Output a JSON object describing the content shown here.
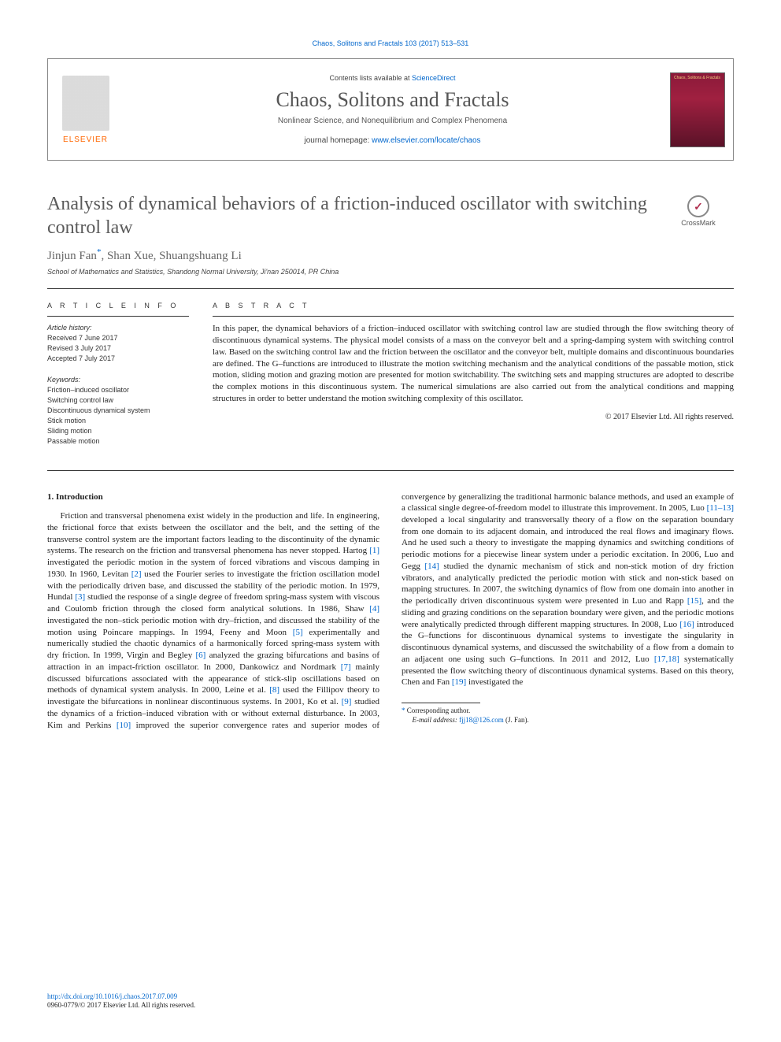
{
  "top_link": "Chaos, Solitons and Fractals 103 (2017) 513–531",
  "header": {
    "elsevier": "ELSEVIER",
    "contents_prefix": "Contents lists available at ",
    "contents_link": "ScienceDirect",
    "journal_name": "Chaos, Solitons and Fractals",
    "journal_subtitle": "Nonlinear Science, and Nonequilibrium and Complex Phenomena",
    "homepage_prefix": "journal homepage: ",
    "homepage_link": "www.elsevier.com/locate/chaos",
    "cover_text": "Chaos, Solitons & Fractals"
  },
  "article": {
    "title": "Analysis of dynamical behaviors of a friction-induced oscillator with switching control law",
    "crossmark": "CrossMark",
    "authors_html": "Jinjun Fan*, Shan Xue, Shuangshuang Li",
    "author1": "Jinjun Fan",
    "author2": ", Shan Xue, Shuangshuang Li",
    "affiliation": "School of Mathematics and Statistics, Shandong Normal University, Ji'nan 250014, PR China"
  },
  "meta": {
    "info_heading": "A R T I C L E   I N F O",
    "history_heading": "Article history:",
    "received": "Received 7 June 2017",
    "revised": "Revised 3 July 2017",
    "accepted": "Accepted 7 July 2017",
    "keywords_heading": "Keywords:",
    "keywords": [
      "Friction–induced oscillator",
      "Switching control law",
      "Discontinuous dynamical system",
      "Stick motion",
      "Sliding motion",
      "Passable motion"
    ]
  },
  "abstract": {
    "heading": "A B S T R A C T",
    "text": "In this paper, the dynamical behaviors of a friction–induced oscillator with switching control law are studied through the flow switching theory of discontinuous dynamical systems. The physical model consists of a mass on the conveyor belt and a spring-damping system with switching control law. Based on the switching control law and the friction between the oscillator and the conveyor belt, multiple domains and discontinuous boundaries are defined. The G–functions are introduced to illustrate the motion switching mechanism and the analytical conditions of the passable motion, stick motion, sliding motion and grazing motion are presented for motion switchability. The switching sets and mapping structures are adopted to describe the complex motions in this discontinuous system. The numerical simulations are also carried out from the analytical conditions and mapping structures in order to better understand the motion switching complexity of this oscillator.",
    "copyright": "© 2017 Elsevier Ltd. All rights reserved."
  },
  "body": {
    "section_heading": "1. Introduction",
    "para": "Friction and transversal phenomena exist widely in the production and life. In engineering, the frictional force that exists between the oscillator and the belt, and the setting of the transverse control system are the important factors leading to the discontinuity of the dynamic systems. The research on the friction and transversal phenomena has never stopped. Hartog [1] investigated the periodic motion in the system of forced vibrations and viscous damping in 1930. In 1960, Levitan [2] used the Fourier series to investigate the friction oscillation model with the periodically driven base, and discussed the stability of the periodic motion. In 1979, Hundal [3] studied the response of a single degree of freedom spring-mass system with viscous and Coulomb friction through the closed form analytical solutions. In 1986, Shaw [4] investigated the non–stick periodic motion with dry–friction, and discussed the stability of the motion using Poincare mappings. In 1994, Feeny and Moon [5] experimentally and numerically studied the chaotic dynamics of a harmonically forced spring-mass system with dry friction. In 1999, Virgin and Begley [6] analyzed the grazing bifurcations and basins of attraction in an impact-friction oscillator. In 2000, Dankowicz and Nordmark [7] mainly discussed bifurcations associated with the appearance of stick-slip oscillations based on methods of dynamical system analysis. In 2000, Leine et al. [8] used the Fillipov theory to investigate the bifurcations in nonlinear discontinuous systems. In 2001, Ko et al. [9] studied the dynamics of a friction–induced vibration with or without external disturbance. In 2003, Kim and Perkins [10] improved the superior convergence rates and superior modes of convergence by generalizing the traditional harmonic balance methods, and used an example of a classical single degree-of-freedom model to illustrate this improvement. In 2005, Luo [11–13] developed a local singularity and transversally theory of a flow on the separation boundary from one domain to its adjacent domain, and introduced the real flows and imaginary flows. And he used such a theory to investigate the mapping dynamics and switching conditions of periodic motions for a piecewise linear system under a periodic excitation. In 2006, Luo and Gegg [14] studied the dynamic mechanism of stick and non-stick motion of dry friction vibrators, and analytically predicted the periodic motion with stick and non-stick based on mapping structures. In 2007, the switching dynamics of flow from one domain into another in the periodically driven discontinuous system were presented in Luo and Rapp [15], and the sliding and grazing conditions on the separation boundary were given, and the periodic motions were analytically predicted through different mapping structures. In 2008, Luo [16] introduced the G–functions for discontinuous dynamical systems to investigate the singularity in discontinuous dynamical systems, and discussed the switchability of a flow from a domain to an adjacent one using such G–functions. In 2011 and 2012, Luo [17,18] systematically presented the flow switching theory of discontinuous dynamical systems. Based on this theory, Chen and Fan [19] investigated the",
    "refs": {
      "r1": "[1]",
      "r2": "[2]",
      "r3": "[3]",
      "r4": "[4]",
      "r5": "[5]",
      "r6": "[6]",
      "r7": "[7]",
      "r8": "[8]",
      "r9": "[9]",
      "r10": "[10]",
      "r11_13": "[11–13]",
      "r14": "[14]",
      "r15": "[15]",
      "r16": "[16]",
      "r17_18": "[17,18]",
      "r19": "[19]"
    }
  },
  "footnote": {
    "corr": "Corresponding author.",
    "email_label": "E-mail address: ",
    "email": "fjj18@126.com",
    "email_who": " (J. Fan)."
  },
  "footer": {
    "doi": "http://dx.doi.org/10.1016/j.chaos.2017.07.009",
    "issn_line": "0960-0779/© 2017 Elsevier Ltd. All rights reserved."
  },
  "colors": {
    "link": "#0066cc",
    "elsevier_orange": "#ff6600",
    "text": "#333333",
    "title_gray": "#5a5a5a",
    "cover_bg": "#8b1a3a"
  },
  "fonts": {
    "sans": "Arial",
    "serif": "Times New Roman",
    "title_size_pt": 24,
    "journal_name_size_pt": 26,
    "body_size_pt": 11,
    "meta_size_pt": 9
  }
}
